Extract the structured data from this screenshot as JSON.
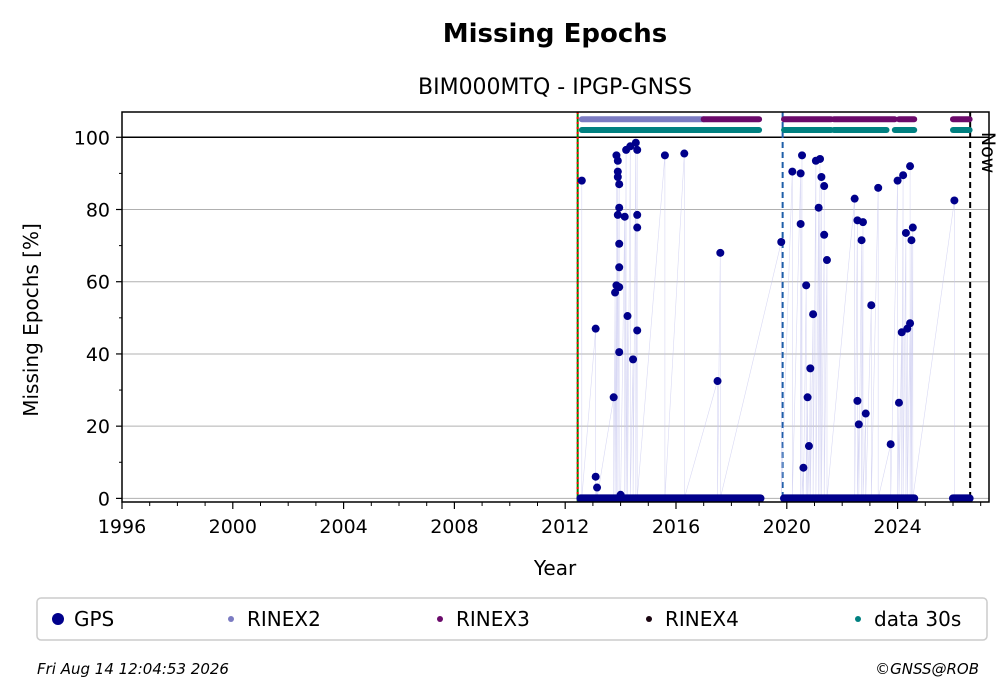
{
  "chart_data": {
    "type": "scatter",
    "title": "Missing Epochs",
    "subtitle": "BIM000MTQ - IPGP-GNSS",
    "xlabel": "Year",
    "ylabel": "Missing Epochs [%]",
    "xlim": [
      1996,
      2027.3
    ],
    "ylim": [
      -1,
      107
    ],
    "xticks": [
      1996,
      2000,
      2004,
      2008,
      2012,
      2016,
      2020,
      2024
    ],
    "yticks": [
      0,
      20,
      40,
      60,
      80,
      100
    ],
    "grid": true,
    "now_label": "Now",
    "now_x": 2026.62,
    "markers": [
      {
        "name": "start-line",
        "x": 2012.45,
        "color": "#008000",
        "style": "solid"
      },
      {
        "name": "start-line-dotted",
        "x": 2012.45,
        "color": "#ff0000",
        "style": "dotted"
      },
      {
        "name": "equipment-change",
        "x": 2019.85,
        "color": "#1f5fa8",
        "style": "dashed"
      }
    ],
    "series": [
      {
        "name": "GPS",
        "color": "#00008b",
        "points": [
          [
            2012.6,
            88
          ],
          [
            2013.1,
            47
          ],
          [
            2013.1,
            6
          ],
          [
            2013.15,
            3
          ],
          [
            2013.75,
            28
          ],
          [
            2013.8,
            57
          ],
          [
            2013.85,
            59
          ],
          [
            2013.85,
            95
          ],
          [
            2013.9,
            93.5
          ],
          [
            2013.9,
            90.5
          ],
          [
            2013.9,
            89
          ],
          [
            2013.95,
            87
          ],
          [
            2013.9,
            78.5
          ],
          [
            2013.95,
            80.5
          ],
          [
            2013.95,
            70.5
          ],
          [
            2013.95,
            64
          ],
          [
            2013.95,
            58.5
          ],
          [
            2013.95,
            40.5
          ],
          [
            2014.0,
            1
          ],
          [
            2014.15,
            78
          ],
          [
            2014.2,
            96.5
          ],
          [
            2014.25,
            50.5
          ],
          [
            2014.35,
            97.5
          ],
          [
            2014.45,
            38.5
          ],
          [
            2014.55,
            98.5
          ],
          [
            2014.6,
            96.5
          ],
          [
            2014.6,
            78.5
          ],
          [
            2014.6,
            75
          ],
          [
            2014.6,
            46.5
          ],
          [
            2015.6,
            95
          ],
          [
            2016.3,
            95.5
          ],
          [
            2017.5,
            32.5
          ],
          [
            2017.6,
            68
          ],
          [
            2019.8,
            71
          ],
          [
            2020.2,
            90.5
          ],
          [
            2020.5,
            90
          ],
          [
            2020.5,
            76
          ],
          [
            2020.55,
            95
          ],
          [
            2020.6,
            8.5
          ],
          [
            2020.7,
            59
          ],
          [
            2020.75,
            28
          ],
          [
            2020.8,
            14.5
          ],
          [
            2020.85,
            36
          ],
          [
            2020.95,
            51
          ],
          [
            2021.05,
            93.5
          ],
          [
            2021.15,
            80.5
          ],
          [
            2021.2,
            94
          ],
          [
            2021.25,
            89
          ],
          [
            2021.35,
            73
          ],
          [
            2021.35,
            86.5
          ],
          [
            2021.45,
            66
          ],
          [
            2022.45,
            83
          ],
          [
            2022.55,
            77
          ],
          [
            2022.55,
            27
          ],
          [
            2022.6,
            20.5
          ],
          [
            2022.7,
            71.5
          ],
          [
            2022.75,
            76.5
          ],
          [
            2022.85,
            23.5
          ],
          [
            2023.05,
            53.5
          ],
          [
            2023.3,
            86
          ],
          [
            2023.75,
            15
          ],
          [
            2024.0,
            88
          ],
          [
            2024.05,
            26.5
          ],
          [
            2024.15,
            46
          ],
          [
            2024.2,
            89.5
          ],
          [
            2024.3,
            73.5
          ],
          [
            2024.35,
            47
          ],
          [
            2024.45,
            48.5
          ],
          [
            2024.45,
            92
          ],
          [
            2024.5,
            71.5
          ],
          [
            2024.55,
            75
          ],
          [
            2026.05,
            82.5
          ]
        ],
        "zero_segments": [
          [
            2012.55,
            2019.05
          ],
          [
            2019.9,
            2024.6
          ],
          [
            2026.0,
            2026.6
          ]
        ]
      },
      {
        "name": "RINEX2",
        "color": "#7b7bc2",
        "level": 105,
        "segments": [
          [
            2012.6,
            2017.0
          ]
        ]
      },
      {
        "name": "RINEX3",
        "color": "#6b0a6b",
        "level": 105,
        "segments": [
          [
            2017.0,
            2019.0
          ],
          [
            2019.9,
            2021.6
          ],
          [
            2021.7,
            2023.9
          ],
          [
            2024.05,
            2024.6
          ],
          [
            2026.0,
            2026.6
          ]
        ]
      },
      {
        "name": "RINEX4",
        "color": "#1a0510",
        "level": null,
        "segments": []
      },
      {
        "name": "data 30s",
        "color": "#008080",
        "level": 102,
        "segments": [
          [
            2012.6,
            2019.0
          ],
          [
            2019.9,
            2021.6
          ],
          [
            2021.7,
            2023.6
          ],
          [
            2023.9,
            2024.6
          ],
          [
            2026.0,
            2026.6
          ]
        ]
      }
    ],
    "legend_placement": "bottom"
  },
  "legend": [
    {
      "label": "GPS",
      "color": "#00008b",
      "size": "large"
    },
    {
      "label": "RINEX2",
      "color": "#7b7bc2",
      "size": "small"
    },
    {
      "label": "RINEX3",
      "color": "#6b0a6b",
      "size": "small"
    },
    {
      "label": "RINEX4",
      "color": "#1a0510",
      "size": "small"
    },
    {
      "label": "data 30s",
      "color": "#008080",
      "size": "small"
    }
  ],
  "footer": {
    "timestamp": "Fri Aug 14 12:04:53 2026",
    "copyright": "©GNSS@ROB"
  }
}
